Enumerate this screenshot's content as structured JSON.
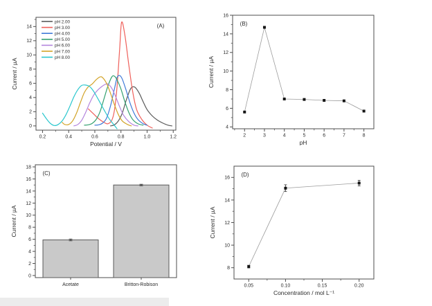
{
  "figure": {
    "background": "#ffffff",
    "axis_color": "#4d4d4d",
    "text_color": "#2b2b2b"
  },
  "chart_data": [
    {
      "id": "A",
      "type": "line",
      "panel_label": "(A)",
      "panel_label_pos": "top-right",
      "xlabel": "Potential / V",
      "ylabel": "Current / µA",
      "xlim": [
        0.15,
        1.22
      ],
      "ylim": [
        -0.6,
        15.3
      ],
      "xticks": [
        0.2,
        0.4,
        0.6,
        0.8,
        1.0,
        1.2
      ],
      "xtick_labels": [
        "0.2",
        "0.4",
        "0.6",
        "0.8",
        "1.0",
        "1.2"
      ],
      "yticks": [
        0,
        2,
        4,
        6,
        8,
        10,
        12,
        14
      ],
      "grid": false,
      "legend_position": "top-left",
      "series": [
        {
          "name": "pH 2.00",
          "color": "#595959",
          "points": [
            [
              0.72,
              0.0
            ],
            [
              0.75,
              0.15
            ],
            [
              0.78,
              0.7
            ],
            [
              0.81,
              1.8
            ],
            [
              0.84,
              3.6
            ],
            [
              0.87,
              5.1
            ],
            [
              0.89,
              5.5
            ],
            [
              0.91,
              5.4
            ],
            [
              0.94,
              4.6
            ],
            [
              0.97,
              3.4
            ],
            [
              1.0,
              2.3
            ],
            [
              1.04,
              1.4
            ],
            [
              1.08,
              0.8
            ],
            [
              1.12,
              0.4
            ],
            [
              1.16,
              0.1
            ],
            [
              1.19,
              0.0
            ]
          ]
        },
        {
          "name": "pH 3.00",
          "color": "#ef5f5a",
          "points": [
            [
              0.55,
              2.4
            ],
            [
              0.59,
              1.7
            ],
            [
              0.63,
              1.0
            ],
            [
              0.67,
              0.5
            ],
            [
              0.7,
              0.3
            ],
            [
              0.73,
              0.8
            ],
            [
              0.75,
              2.2
            ],
            [
              0.77,
              5.5
            ],
            [
              0.79,
              10.8
            ],
            [
              0.805,
              14.6
            ],
            [
              0.83,
              12.8
            ],
            [
              0.86,
              8.6
            ],
            [
              0.89,
              4.8
            ],
            [
              0.92,
              2.3
            ],
            [
              0.96,
              0.9
            ],
            [
              1.0,
              0.1
            ],
            [
              1.04,
              -0.3
            ]
          ]
        },
        {
          "name": "pH 4.00",
          "color": "#3e79d8",
          "points": [
            [
              0.6,
              0.1
            ],
            [
              0.63,
              0.15
            ],
            [
              0.66,
              0.4
            ],
            [
              0.69,
              1.1
            ],
            [
              0.72,
              2.8
            ],
            [
              0.75,
              5.2
            ],
            [
              0.77,
              6.8
            ],
            [
              0.79,
              7.1
            ],
            [
              0.81,
              6.6
            ],
            [
              0.84,
              5.0
            ],
            [
              0.87,
              3.2
            ],
            [
              0.9,
              1.8
            ],
            [
              0.93,
              0.9
            ],
            [
              0.97,
              0.3
            ],
            [
              1.0,
              0.1
            ]
          ]
        },
        {
          "name": "pH 5.00",
          "color": "#33a06f",
          "points": [
            [
              0.52,
              0.1
            ],
            [
              0.55,
              0.15
            ],
            [
              0.58,
              0.35
            ],
            [
              0.61,
              0.9
            ],
            [
              0.64,
              2.0
            ],
            [
              0.67,
              3.8
            ],
            [
              0.7,
              5.6
            ],
            [
              0.73,
              6.9
            ],
            [
              0.75,
              7.0
            ],
            [
              0.77,
              6.5
            ],
            [
              0.8,
              5.2
            ],
            [
              0.83,
              3.4
            ],
            [
              0.86,
              1.9
            ],
            [
              0.89,
              0.9
            ],
            [
              0.93,
              0.3
            ],
            [
              0.97,
              0.1
            ]
          ]
        },
        {
          "name": "pH 6.00",
          "color": "#b384dd",
          "points": [
            [
              0.44,
              0.0
            ],
            [
              0.47,
              0.2
            ],
            [
              0.5,
              0.8
            ],
            [
              0.53,
              1.9
            ],
            [
              0.56,
              3.2
            ],
            [
              0.59,
              4.3
            ],
            [
              0.62,
              5.0
            ],
            [
              0.65,
              5.5
            ],
            [
              0.68,
              5.85
            ],
            [
              0.7,
              5.9
            ],
            [
              0.73,
              5.3
            ],
            [
              0.76,
              4.1
            ],
            [
              0.79,
              2.7
            ],
            [
              0.82,
              1.5
            ],
            [
              0.86,
              0.6
            ],
            [
              0.9,
              0.1
            ],
            [
              0.93,
              0.0
            ]
          ]
        },
        {
          "name": "pH 7.00",
          "color": "#d2a327",
          "points": [
            [
              0.35,
              0.5
            ],
            [
              0.37,
              0.2
            ],
            [
              0.4,
              0.2
            ],
            [
              0.43,
              0.7
            ],
            [
              0.46,
              1.8
            ],
            [
              0.49,
              3.3
            ],
            [
              0.52,
              4.7
            ],
            [
              0.55,
              5.5
            ],
            [
              0.58,
              5.9
            ],
            [
              0.61,
              6.5
            ],
            [
              0.64,
              6.9
            ],
            [
              0.66,
              6.8
            ],
            [
              0.69,
              6.0
            ],
            [
              0.72,
              4.6
            ],
            [
              0.75,
              3.0
            ],
            [
              0.78,
              1.6
            ],
            [
              0.81,
              0.7
            ],
            [
              0.85,
              0.2
            ],
            [
              0.88,
              0.0
            ]
          ]
        },
        {
          "name": "pH 8.00",
          "color": "#2bc7ce",
          "points": [
            [
              0.2,
              1.8
            ],
            [
              0.23,
              1.0
            ],
            [
              0.26,
              0.35
            ],
            [
              0.29,
              0.05
            ],
            [
              0.32,
              0.2
            ],
            [
              0.35,
              0.7
            ],
            [
              0.38,
              1.6
            ],
            [
              0.41,
              2.8
            ],
            [
              0.44,
              4.1
            ],
            [
              0.47,
              5.1
            ],
            [
              0.5,
              5.7
            ],
            [
              0.53,
              5.75
            ],
            [
              0.56,
              5.55
            ],
            [
              0.59,
              4.9
            ],
            [
              0.62,
              3.95
            ],
            [
              0.65,
              2.95
            ],
            [
              0.68,
              1.95
            ],
            [
              0.71,
              1.0
            ],
            [
              0.74,
              0.3
            ],
            [
              0.77,
              -0.4
            ]
          ]
        }
      ]
    },
    {
      "id": "B",
      "type": "scatter-line",
      "panel_label": "(B)",
      "panel_label_pos": "top-left",
      "xlabel": "pH",
      "ylabel": "Current / µA",
      "xlim": [
        1.4,
        8.5
      ],
      "ylim": [
        3.8,
        16
      ],
      "xticks": [
        2,
        3,
        4,
        5,
        6,
        7,
        8
      ],
      "yticks": [
        4,
        6,
        8,
        10,
        12,
        14,
        16
      ],
      "grid": false,
      "x": [
        2,
        3,
        4,
        5,
        6,
        7,
        8
      ],
      "y": [
        5.6,
        14.7,
        7.0,
        6.95,
        6.85,
        6.8,
        5.7
      ],
      "errors": [],
      "line_color": "#9c9c9c",
      "marker_color": "#151515"
    },
    {
      "id": "C",
      "type": "bar",
      "panel_label": "(C)",
      "panel_label_pos": "top-left",
      "xlabel": "",
      "ylabel": "Current / µA",
      "ylim": [
        -0.35,
        18.35
      ],
      "yticks": [
        0,
        2,
        4,
        6,
        8,
        10,
        12,
        14,
        16,
        18
      ],
      "grid": false,
      "categories": [
        "Acetate",
        "Britton-Robison"
      ],
      "values": [
        5.9,
        15.0
      ],
      "errors": [
        0.15,
        0.12
      ],
      "bar_fill": "#c9c9c9",
      "bar_stroke": "#5a5a5a"
    },
    {
      "id": "D",
      "type": "scatter-line",
      "panel_label": "(D)",
      "panel_label_pos": "top-left",
      "xlabel": "Concentration / mol L⁻¹",
      "ylabel": "Current / µA",
      "xlim": [
        0.03,
        0.22
      ],
      "ylim": [
        7,
        17
      ],
      "xticks": [
        0.05,
        0.1,
        0.15,
        0.2
      ],
      "xtick_labels": [
        "0.05",
        "0.10",
        "0.15",
        "0.20"
      ],
      "yticks": [
        8,
        10,
        12,
        14,
        16
      ],
      "grid": false,
      "x": [
        0.05,
        0.1,
        0.2
      ],
      "y": [
        8.1,
        15.05,
        15.5
      ],
      "errors": [
        0.12,
        0.3,
        0.25
      ],
      "line_color": "#9c9c9c",
      "marker_color": "#151515"
    }
  ]
}
